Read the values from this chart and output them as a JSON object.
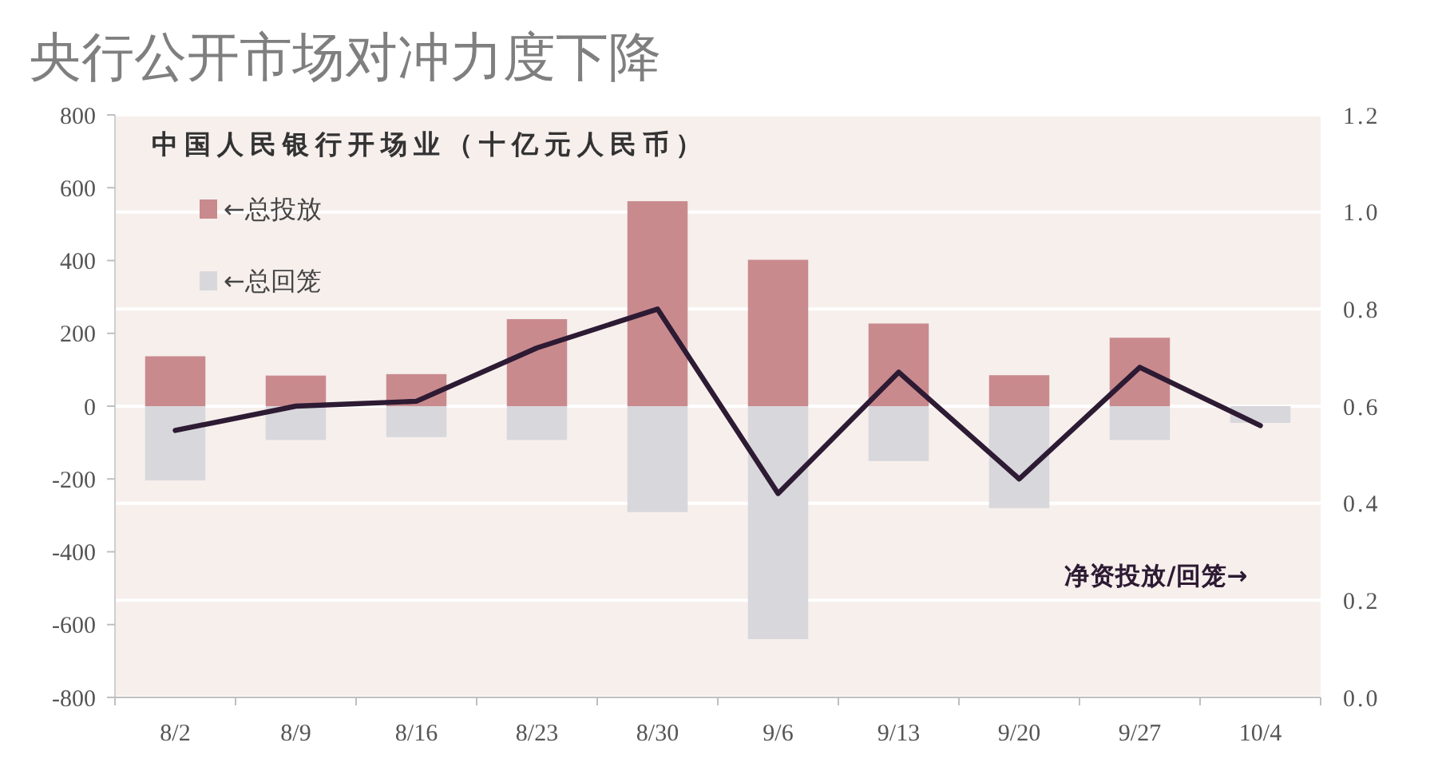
{
  "chart_data": {
    "type": "bar",
    "title": "央行公开市场对冲力度下降",
    "subtitle": "中国人民银行开场业（十亿元人民币）",
    "categories": [
      "8/2",
      "8/9",
      "8/16",
      "8/23",
      "8/30",
      "9/6",
      "9/13",
      "9/20",
      "9/27",
      "10/4"
    ],
    "series": [
      {
        "name": "←总投放",
        "color": "#c98a8e",
        "values": [
          137,
          84,
          88,
          239,
          563,
          402,
          227,
          85,
          188,
          null
        ]
      },
      {
        "name": "←总回笼",
        "color": "#d8d7dc",
        "values": [
          -204,
          -93,
          -85,
          -93,
          -291,
          -640,
          -151,
          -280,
          -93,
          -46
        ]
      },
      {
        "name": "净资投放/回笼→",
        "type": "line",
        "axis": "y2",
        "color": "#2d1a33",
        "values": [
          0.55,
          0.6,
          0.61,
          0.72,
          0.8,
          0.42,
          0.67,
          0.45,
          0.68,
          0.56
        ]
      }
    ],
    "stacked": true,
    "ylim": [
      -800,
      800
    ],
    "yticks": [
      -800,
      -600,
      -400,
      -200,
      0,
      200,
      400,
      600,
      800
    ],
    "y2lim": [
      0,
      1.2
    ],
    "y2ticks": [
      {
        "value": 0,
        "label": "0.0"
      },
      0.2,
      0.4,
      0.6,
      0.8,
      {
        "value": 1,
        "label": "1.0"
      },
      1.2
    ],
    "grid": "y2",
    "legend": "top left"
  }
}
